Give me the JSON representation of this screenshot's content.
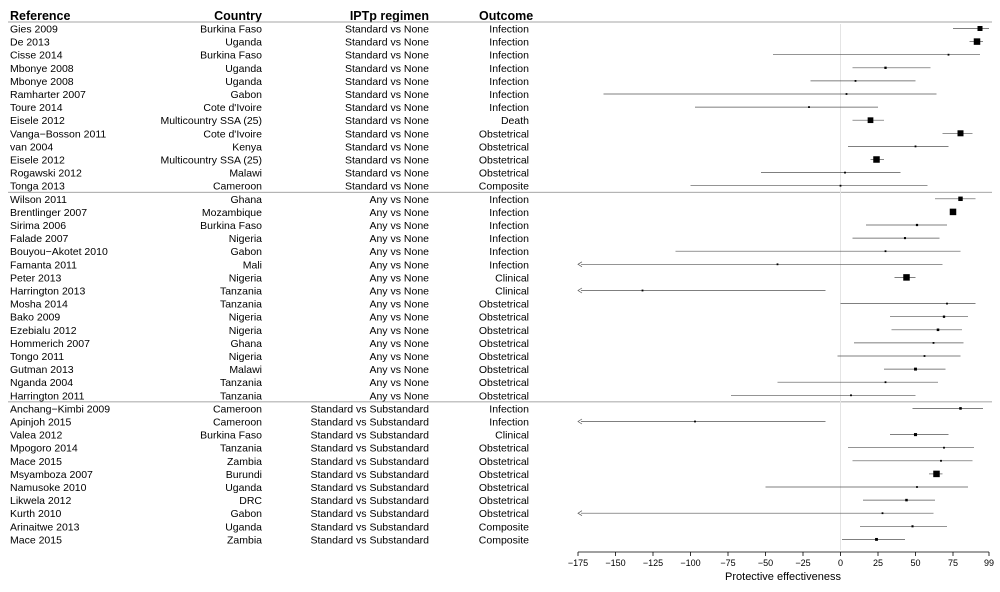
{
  "chart_data": {
    "type": "forest",
    "title": "",
    "columns": [
      "Reference",
      "Country",
      "IPTp regimen",
      "Outcome"
    ],
    "xlabel": "Protective effectiveness",
    "xticks": [
      -175,
      -150,
      -125,
      -100,
      -75,
      -50,
      -25,
      0,
      25,
      50,
      75,
      99
    ],
    "xlim": [
      -175,
      99
    ],
    "reference_line": 0,
    "groups": [
      {
        "rows": [
          {
            "reference": "Gies 2009",
            "country": "Burkina Faso",
            "regimen": "Standard vs None",
            "outcome": "Infection",
            "estimate": 93,
            "lower": 75,
            "upper": 99
          },
          {
            "reference": "De 2013",
            "country": "Uganda",
            "regimen": "Standard vs None",
            "outcome": "Infection",
            "estimate": 91,
            "lower": 86,
            "upper": 95
          },
          {
            "reference": "Cisse 2014",
            "country": "Burkina Faso",
            "regimen": "Standard vs None",
            "outcome": "Infection",
            "estimate": 72,
            "lower": -45,
            "upper": 93
          },
          {
            "reference": "Mbonye 2008",
            "country": "Uganda",
            "regimen": "Standard vs None",
            "outcome": "Infection",
            "estimate": 30,
            "lower": 8,
            "upper": 60
          },
          {
            "reference": "Mbonye 2008",
            "country": "Uganda",
            "regimen": "Standard vs None",
            "outcome": "Infection",
            "estimate": 10,
            "lower": -20,
            "upper": 50
          },
          {
            "reference": "Ramharter 2007",
            "country": "Gabon",
            "regimen": "Standard vs None",
            "outcome": "Infection",
            "estimate": 4,
            "lower": -158,
            "upper": 64
          },
          {
            "reference": "Toure 2014",
            "country": "Cote d'Ivoire",
            "regimen": "Standard vs None",
            "outcome": "Infection",
            "estimate": -21,
            "lower": -97,
            "upper": 25
          },
          {
            "reference": "Eisele 2012",
            "country": "Multicountry SSA (25)",
            "regimen": "Standard vs None",
            "outcome": "Death",
            "estimate": 20,
            "lower": 8,
            "upper": 29
          },
          {
            "reference": "Vanga−Bosson 2011",
            "country": "Cote d'Ivoire",
            "regimen": "Standard vs None",
            "outcome": "Obstetrical",
            "estimate": 80,
            "lower": 68,
            "upper": 88
          },
          {
            "reference": "van 2004",
            "country": "Kenya",
            "regimen": "Standard vs None",
            "outcome": "Obstetrical",
            "estimate": 50,
            "lower": 5,
            "upper": 72
          },
          {
            "reference": "Eisele 2012",
            "country": "Multicountry SSA (25)",
            "regimen": "Standard vs None",
            "outcome": "Obstetrical",
            "estimate": 24,
            "lower": 20,
            "upper": 29
          },
          {
            "reference": "Rogawski 2012",
            "country": "Malawi",
            "regimen": "Standard vs None",
            "outcome": "Obstetrical",
            "estimate": 3,
            "lower": -53,
            "upper": 40
          },
          {
            "reference": "Tonga 2013",
            "country": "Cameroon",
            "regimen": "Standard vs None",
            "outcome": "Composite",
            "estimate": 0,
            "lower": -100,
            "upper": 58
          }
        ]
      },
      {
        "rows": [
          {
            "reference": "Wilson 2011",
            "country": "Ghana",
            "regimen": "Any vs None",
            "outcome": "Infection",
            "estimate": 80,
            "lower": 63,
            "upper": 90
          },
          {
            "reference": "Brentlinger 2007",
            "country": "Mozambique",
            "regimen": "Any vs None",
            "outcome": "Infection",
            "estimate": 75,
            "lower": 73,
            "upper": 77
          },
          {
            "reference": "Sirima 2006",
            "country": "Burkina Faso",
            "regimen": "Any vs None",
            "outcome": "Infection",
            "estimate": 51,
            "lower": 17,
            "upper": 71
          },
          {
            "reference": "Falade 2007",
            "country": "Nigeria",
            "regimen": "Any vs None",
            "outcome": "Infection",
            "estimate": 43,
            "lower": 8,
            "upper": 66
          },
          {
            "reference": "Bouyou−Akotet 2010",
            "country": "Gabon",
            "regimen": "Any vs None",
            "outcome": "Infection",
            "estimate": 30,
            "lower": -110,
            "upper": 80
          },
          {
            "reference": "Famanta 2011",
            "country": "Mali",
            "regimen": "Any vs None",
            "outcome": "Infection",
            "estimate": -42,
            "lower": -175,
            "upper": 68
          },
          {
            "reference": "Peter 2013",
            "country": "Nigeria",
            "regimen": "Any vs None",
            "outcome": "Clinical",
            "estimate": 44,
            "lower": 36,
            "upper": 50
          },
          {
            "reference": "Harrington 2013",
            "country": "Tanzania",
            "regimen": "Any vs None",
            "outcome": "Clinical",
            "estimate": -132,
            "lower": -175,
            "upper": -10
          },
          {
            "reference": "Mosha 2014",
            "country": "Tanzania",
            "regimen": "Any vs None",
            "outcome": "Obstetrical",
            "estimate": 71,
            "lower": 0,
            "upper": 90
          },
          {
            "reference": "Bako 2009",
            "country": "Nigeria",
            "regimen": "Any vs None",
            "outcome": "Obstetrical",
            "estimate": 69,
            "lower": 33,
            "upper": 85
          },
          {
            "reference": "Ezebialu 2012",
            "country": "Nigeria",
            "regimen": "Any vs None",
            "outcome": "Obstetrical",
            "estimate": 65,
            "lower": 34,
            "upper": 81
          },
          {
            "reference": "Hommerich 2007",
            "country": "Ghana",
            "regimen": "Any vs None",
            "outcome": "Obstetrical",
            "estimate": 62,
            "lower": 9,
            "upper": 82
          },
          {
            "reference": "Tongo 2011",
            "country": "Nigeria",
            "regimen": "Any vs None",
            "outcome": "Obstetrical",
            "estimate": 56,
            "lower": -2,
            "upper": 80
          },
          {
            "reference": "Gutman 2013",
            "country": "Malawi",
            "regimen": "Any vs None",
            "outcome": "Obstetrical",
            "estimate": 50,
            "lower": 29,
            "upper": 70
          },
          {
            "reference": "Nganda 2004",
            "country": "Tanzania",
            "regimen": "Any vs None",
            "outcome": "Obstetrical",
            "estimate": 30,
            "lower": -42,
            "upper": 65
          },
          {
            "reference": "Harrington 2011",
            "country": "Tanzania",
            "regimen": "Any vs None",
            "outcome": "Obstetrical",
            "estimate": 7,
            "lower": -73,
            "upper": 50
          }
        ]
      },
      {
        "rows": [
          {
            "reference": "Anchang−Kimbi 2009",
            "country": "Cameroon",
            "regimen": "Standard vs Substandard",
            "outcome": "Infection",
            "estimate": 80,
            "lower": 48,
            "upper": 95
          },
          {
            "reference": "Apinjoh 2015",
            "country": "Cameroon",
            "regimen": "Standard vs Substandard",
            "outcome": "Infection",
            "estimate": -97,
            "lower": -175,
            "upper": -10
          },
          {
            "reference": "Valea 2012",
            "country": "Burkina Faso",
            "regimen": "Standard vs Substandard",
            "outcome": "Clinical",
            "estimate": 50,
            "lower": 33,
            "upper": 72
          },
          {
            "reference": "Mpogoro 2014",
            "country": "Tanzania",
            "regimen": "Standard vs Substandard",
            "outcome": "Obstetrical",
            "estimate": 69,
            "lower": 5,
            "upper": 89
          },
          {
            "reference": "Mace 2015",
            "country": "Zambia",
            "regimen": "Standard vs Substandard",
            "outcome": "Obstetrical",
            "estimate": 67,
            "lower": 8,
            "upper": 88
          },
          {
            "reference": "Msyamboza 2007",
            "country": "Burundi",
            "regimen": "Standard vs Substandard",
            "outcome": "Obstetrical",
            "estimate": 64,
            "lower": 59,
            "upper": 68
          },
          {
            "reference": "Namusoke 2010",
            "country": "Uganda",
            "regimen": "Standard vs Substandard",
            "outcome": "Obstetrical",
            "estimate": 51,
            "lower": -50,
            "upper": 85
          },
          {
            "reference": "Likwela 2012",
            "country": "DRC",
            "regimen": "Standard vs Substandard",
            "outcome": "Obstetrical",
            "estimate": 44,
            "lower": 15,
            "upper": 63
          },
          {
            "reference": "Kurth 2010",
            "country": "Gabon",
            "regimen": "Standard vs Substandard",
            "outcome": "Obstetrical",
            "estimate": 28,
            "lower": -175,
            "upper": 62
          },
          {
            "reference": "Arinaitwe 2013",
            "country": "Uganda",
            "regimen": "Standard vs Substandard",
            "outcome": "Composite",
            "estimate": 48,
            "lower": 13,
            "upper": 71
          },
          {
            "reference": "Mace 2015",
            "country": "Zambia",
            "regimen": "Standard vs Substandard",
            "outcome": "Composite",
            "estimate": 24,
            "lower": 1,
            "upper": 43
          }
        ]
      }
    ],
    "colors": {
      "ci_line": "#555555",
      "point": "#000000",
      "separator": "#888888",
      "ref_line": "#e4e4e4"
    }
  }
}
